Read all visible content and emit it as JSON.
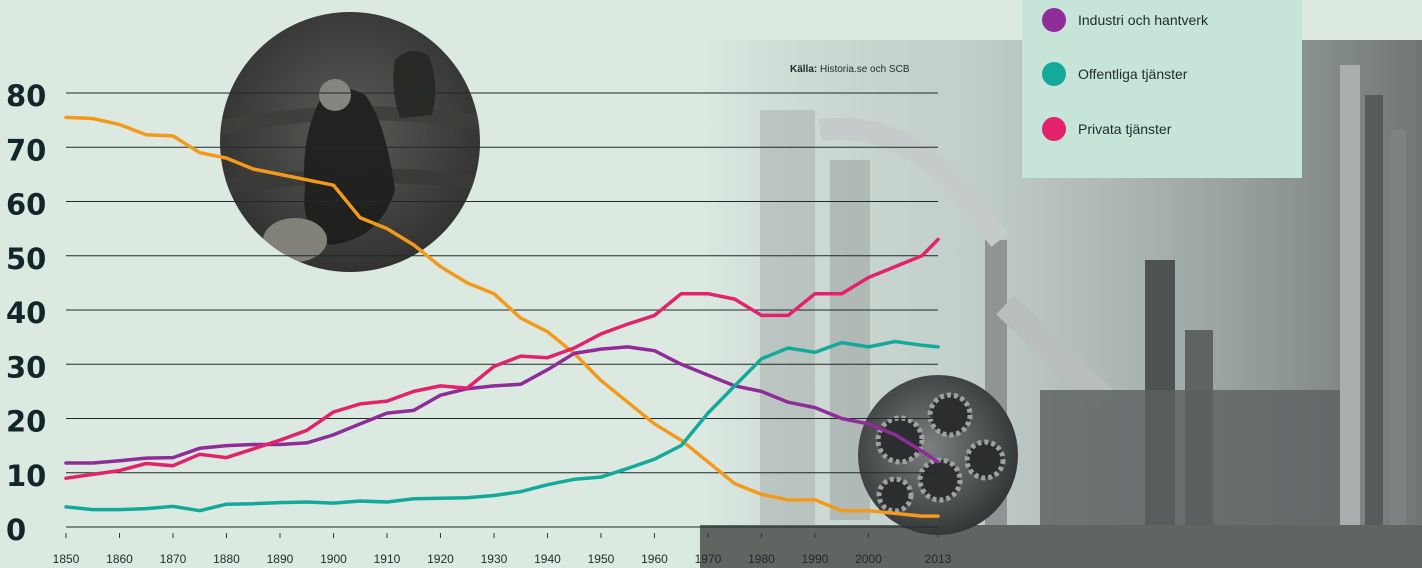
{
  "source": {
    "label": "Källa:",
    "text": "Historia.se och SCB"
  },
  "legend": {
    "items": [
      {
        "label": "Industri och hantverk",
        "color": "#8e2d97"
      },
      {
        "label": "Offentliga tjänster",
        "color": "#15a99b"
      },
      {
        "label": "Privata tjänster",
        "color": "#e2226b"
      }
    ]
  },
  "images": [
    {
      "icon": "farm-workers-photo"
    },
    {
      "icon": "gears-photo"
    },
    {
      "icon": "refinery-photo"
    }
  ],
  "chart_data": {
    "type": "line",
    "x": [
      1850,
      1855,
      1860,
      1865,
      1870,
      1875,
      1880,
      1885,
      1890,
      1895,
      1900,
      1905,
      1910,
      1915,
      1920,
      1925,
      1930,
      1935,
      1940,
      1945,
      1950,
      1955,
      1960,
      1965,
      1970,
      1975,
      1980,
      1985,
      1990,
      1995,
      2000,
      2005,
      2010,
      2013
    ],
    "xticks": [
      "1850",
      "1860",
      "1870",
      "1880",
      "1890",
      "1900",
      "1910",
      "1920",
      "1930",
      "1940",
      "1950",
      "1960",
      "1970",
      "1980",
      "1990",
      "2000",
      "2013"
    ],
    "xtick_values": [
      1850,
      1860,
      1870,
      1880,
      1890,
      1900,
      1910,
      1920,
      1930,
      1940,
      1950,
      1960,
      1970,
      1980,
      1990,
      2000,
      2013
    ],
    "yticks": [
      "0",
      "10",
      "20",
      "30",
      "40",
      "50",
      "60",
      "70",
      "80"
    ],
    "ylim": [
      0,
      80
    ],
    "grid": true,
    "series": [
      {
        "color": "#f39a1c",
        "values": [
          75.5,
          75.3,
          74.2,
          72.3,
          72.1,
          69,
          68,
          66,
          65,
          64,
          63,
          57,
          55,
          52,
          48,
          45,
          43,
          38.5,
          36,
          32,
          27,
          23,
          19,
          16,
          12,
          8,
          6,
          5,
          5,
          3,
          3,
          2.5,
          2,
          2
        ]
      },
      {
        "name": "Industri och hantverk",
        "color": "#8e2d97",
        "values": [
          11.8,
          11.8,
          12.2,
          12.7,
          12.8,
          14.5,
          15,
          15.2,
          15.2,
          15.5,
          17,
          19,
          21,
          21.5,
          24.3,
          25.5,
          26,
          26.3,
          29,
          32,
          32.8,
          33.2,
          32.5,
          30,
          28,
          26,
          25,
          23,
          22,
          20,
          19,
          17,
          14,
          12
        ]
      },
      {
        "name": "Offentliga tjänster",
        "color": "#15a99b",
        "values": [
          3.7,
          3.2,
          3.2,
          3.4,
          3.8,
          3,
          4.2,
          4.3,
          4.5,
          4.6,
          4.4,
          4.8,
          4.6,
          5.2,
          5.3,
          5.4,
          5.8,
          6.5,
          7.8,
          8.8,
          9.2,
          10.8,
          12.5,
          15,
          21,
          26,
          31,
          33,
          32.2,
          34,
          33.2,
          34.2,
          33.5,
          33.2
        ]
      },
      {
        "name": "Privata tjänster",
        "color": "#e2226b",
        "values": [
          9,
          9.7,
          10.4,
          11.7,
          11.3,
          13.4,
          12.8,
          14.4,
          16,
          17.8,
          21.2,
          22.7,
          23.2,
          25,
          26,
          25.6,
          29.6,
          31.5,
          31.2,
          33,
          35.6,
          37.4,
          39,
          43,
          43,
          42,
          39,
          39,
          43,
          43,
          46,
          48,
          50,
          53
        ]
      }
    ]
  }
}
